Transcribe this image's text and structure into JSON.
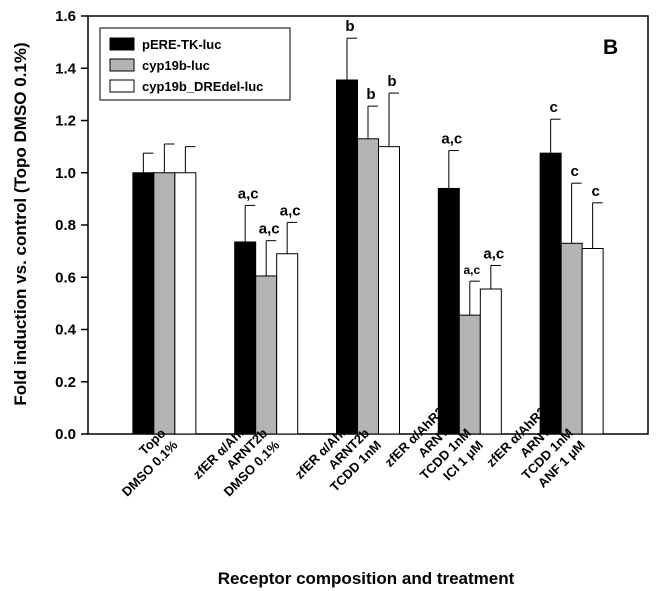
{
  "chart_data": {
    "type": "bar",
    "panel_label": "B",
    "xlabel": "Receptor composition and treatment",
    "ylabel": "Fold induction vs. control (Topo DMSO 0.1%)",
    "ylim": [
      0,
      1.6
    ],
    "yticks": [
      "0.0",
      "0.2",
      "0.4",
      "0.6",
      "0.8",
      "1.0",
      "1.2",
      "1.4",
      "1.6"
    ],
    "categories": [
      [
        "Topo",
        "DMSO 0.1%"
      ],
      [
        "zfER α/AhR2/",
        "ARNT2b",
        "DMSO 0.1%"
      ],
      [
        "zfER α/AhR2/",
        "ARNT2b",
        "TCDD 1nM"
      ],
      [
        "zfER α/AhR2/",
        "ARNT2b",
        "TCDD 1nM",
        "ICI 1 μM"
      ],
      [
        "zfER α/AhR2/",
        "ARNT2b",
        "TCDD 1nM",
        "ANF 1 μM"
      ]
    ],
    "legend_position": "top-left",
    "series": [
      {
        "name": "pERE-TK-luc",
        "color": "#000000",
        "values": [
          1.0,
          0.735,
          1.355,
          0.94,
          1.075
        ],
        "errors": [
          0.075,
          0.14,
          0.16,
          0.145,
          0.13
        ],
        "labels": [
          "",
          "a,c",
          "b",
          "a,c",
          "c"
        ]
      },
      {
        "name": "cyp19b-luc",
        "color": "#b4b4b4",
        "values": [
          1.0,
          0.605,
          1.13,
          0.455,
          0.73
        ],
        "errors": [
          0.11,
          0.135,
          0.125,
          0.13,
          0.23
        ],
        "labels": [
          "",
          "a,c",
          "b",
          "a,c",
          "c"
        ]
      },
      {
        "name": "cyp19b_DREdel-luc",
        "color": "#ffffff",
        "values": [
          1.0,
          0.69,
          1.1,
          0.555,
          0.71
        ],
        "errors": [
          0.1,
          0.12,
          0.205,
          0.09,
          0.175
        ],
        "labels": [
          "",
          "a,c",
          "b",
          "a,c",
          "c"
        ]
      }
    ]
  }
}
